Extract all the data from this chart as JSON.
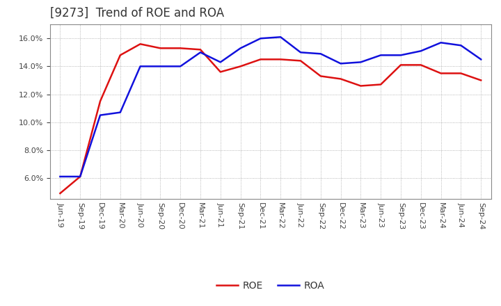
{
  "title": "[9273]  Trend of ROE and ROA",
  "labels": [
    "Jun-19",
    "Sep-19",
    "Dec-19",
    "Mar-20",
    "Jun-20",
    "Sep-20",
    "Dec-20",
    "Mar-21",
    "Jun-21",
    "Sep-21",
    "Dec-21",
    "Mar-22",
    "Jun-22",
    "Sep-22",
    "Dec-22",
    "Mar-23",
    "Jun-23",
    "Sep-23",
    "Dec-23",
    "Mar-24",
    "Jun-24",
    "Sep-24"
  ],
  "ROE": [
    4.9,
    6.1,
    11.5,
    14.8,
    15.6,
    15.3,
    15.3,
    15.2,
    13.6,
    14.0,
    14.5,
    14.5,
    14.4,
    13.3,
    13.1,
    12.6,
    12.7,
    14.1,
    14.1,
    13.5,
    13.5,
    13.0
  ],
  "ROA": [
    6.1,
    6.1,
    10.5,
    10.7,
    14.0,
    14.0,
    14.0,
    15.0,
    14.3,
    15.3,
    16.0,
    16.1,
    15.0,
    14.9,
    14.2,
    14.3,
    14.8,
    14.8,
    15.1,
    15.7,
    15.5,
    14.5
  ],
  "roe_color": "#dd1111",
  "roa_color": "#1111dd",
  "background_color": "#ffffff",
  "plot_bg_color": "#ffffff",
  "grid_color": "#999999",
  "ylim": [
    4.5,
    17.0
  ],
  "yticks": [
    6.0,
    8.0,
    10.0,
    12.0,
    14.0,
    16.0
  ],
  "title_color": "#333333",
  "title_fontsize": 12,
  "legend_fontsize": 10,
  "tick_fontsize": 8,
  "line_width": 1.8
}
